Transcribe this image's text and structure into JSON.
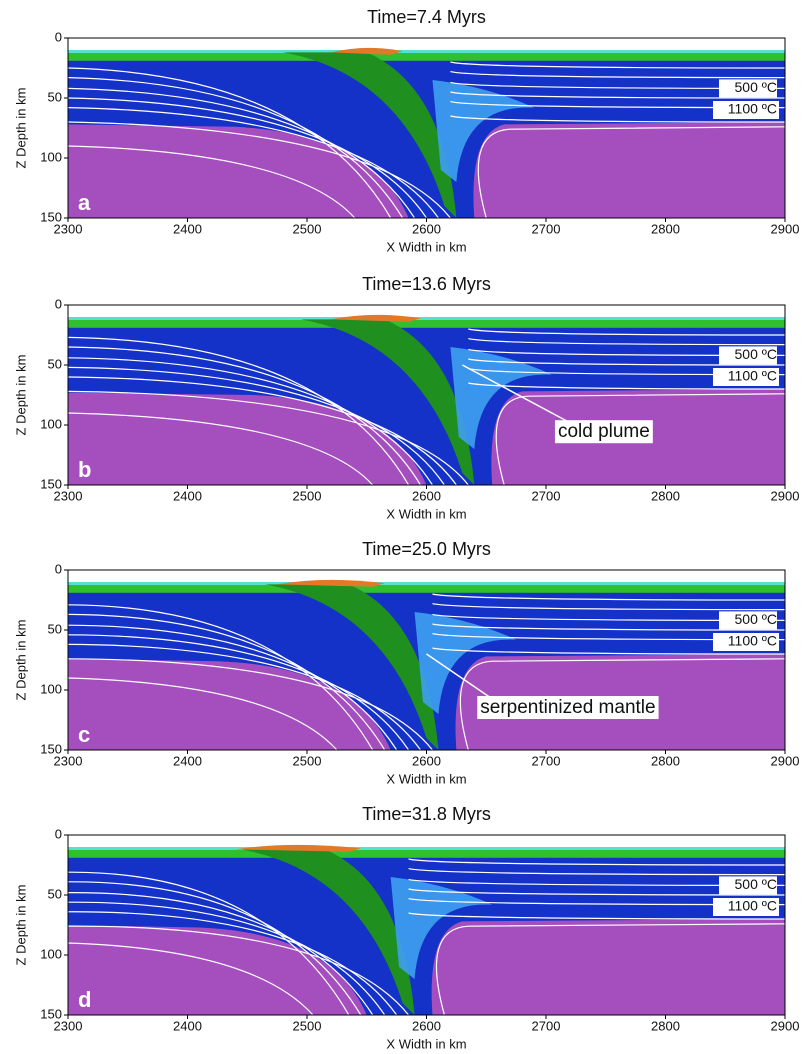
{
  "chart_data": [
    {
      "type": "model",
      "title": "Time=7.4 Myrs",
      "panel_label": "a",
      "x_label": "X Width in km",
      "y_label": "Z Depth in km",
      "xlim": [
        2300,
        2900
      ],
      "ylim": [
        0,
        150
      ],
      "y_reversed": true,
      "xticks": [
        2300,
        2400,
        2500,
        2600,
        2700,
        2800,
        2900
      ],
      "yticks": [
        0,
        50,
        100,
        150
      ],
      "annotations": [
        "500 ºC",
        "1100 ºC"
      ]
    },
    {
      "type": "model",
      "title": "Time=13.6 Myrs",
      "panel_label": "b",
      "x_label": "X Width in km",
      "y_label": "Z Depth in km",
      "xlim": [
        2300,
        2900
      ],
      "ylim": [
        0,
        150
      ],
      "y_reversed": true,
      "xticks": [
        2300,
        2400,
        2500,
        2600,
        2700,
        2800,
        2900
      ],
      "yticks": [
        0,
        50,
        100,
        150
      ],
      "annotations": [
        "500 ºC",
        "1100 ºC"
      ],
      "callout": "cold plume"
    },
    {
      "type": "model",
      "title": "Time=25.0 Myrs",
      "panel_label": "c",
      "x_label": "X Width in km",
      "y_label": "Z Depth in km",
      "xlim": [
        2300,
        2900
      ],
      "ylim": [
        0,
        150
      ],
      "y_reversed": true,
      "xticks": [
        2300,
        2400,
        2500,
        2600,
        2700,
        2800,
        2900
      ],
      "yticks": [
        0,
        50,
        100,
        150
      ],
      "annotations": [
        "500 ºC",
        "1100 ºC"
      ],
      "callout": "serpentinized mantle"
    },
    {
      "type": "model",
      "title": "Time=31.8 Myrs",
      "panel_label": "d",
      "x_label": "X Width in km",
      "y_label": "Z Depth in km",
      "xlim": [
        2300,
        2900
      ],
      "ylim": [
        0,
        150
      ],
      "y_reversed": true,
      "xticks": [
        2300,
        2400,
        2500,
        2600,
        2700,
        2800,
        2900
      ],
      "yticks": [
        0,
        50,
        100,
        150
      ],
      "annotations": [
        "500 ºC",
        "1100 ºC"
      ]
    }
  ]
}
